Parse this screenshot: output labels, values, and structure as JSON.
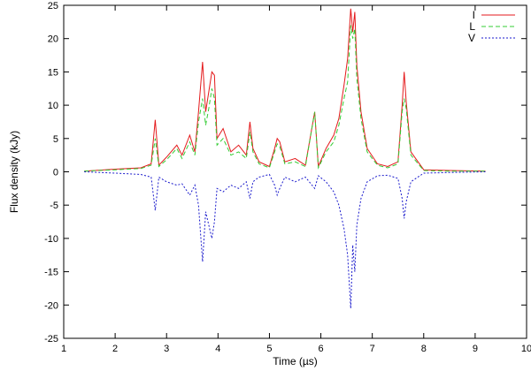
{
  "chart_data": {
    "type": "line",
    "title": "",
    "xlabel": "Time (µs)",
    "ylabel": "Flux density (kJy)",
    "xlim": [
      1,
      10
    ],
    "ylim": [
      -25,
      25
    ],
    "xticks": [
      1,
      2,
      3,
      4,
      5,
      6,
      7,
      8,
      9,
      10
    ],
    "yticks": [
      -25,
      -20,
      -15,
      -10,
      -5,
      0,
      5,
      10,
      15,
      20,
      25
    ],
    "grid": false,
    "legend_position": "top-right",
    "series": [
      {
        "name": "I",
        "color": "#e41a1c",
        "style": "solid",
        "x": [
          1.4,
          2.0,
          2.5,
          2.7,
          2.78,
          2.85,
          3.0,
          3.2,
          3.3,
          3.45,
          3.55,
          3.62,
          3.7,
          3.76,
          3.82,
          3.88,
          3.93,
          3.98,
          4.1,
          4.25,
          4.4,
          4.55,
          4.62,
          4.68,
          4.8,
          5.0,
          5.1,
          5.15,
          5.2,
          5.3,
          5.5,
          5.7,
          5.88,
          5.95,
          6.1,
          6.25,
          6.35,
          6.45,
          6.52,
          6.58,
          6.62,
          6.66,
          6.7,
          6.78,
          6.9,
          7.1,
          7.3,
          7.5,
          7.58,
          7.62,
          7.66,
          7.75,
          8.0,
          8.5,
          9.2
        ],
        "y": [
          0.1,
          0.4,
          0.6,
          1.2,
          7.8,
          1.0,
          2.2,
          4.0,
          2.5,
          5.5,
          3.0,
          9.0,
          16.5,
          9.0,
          12.0,
          15.0,
          14.5,
          5.0,
          6.5,
          3.0,
          4.0,
          2.5,
          7.5,
          3.5,
          1.5,
          0.8,
          3.5,
          5.0,
          4.5,
          1.5,
          2.0,
          1.0,
          9.0,
          0.8,
          3.5,
          5.5,
          8.0,
          13.0,
          17.0,
          24.5,
          21.0,
          24.0,
          16.0,
          9.0,
          3.5,
          1.2,
          0.8,
          1.5,
          10.0,
          15.0,
          10.5,
          3.0,
          0.3,
          0.2,
          0.1
        ]
      },
      {
        "name": "L",
        "color": "#33cc33",
        "style": "dashed",
        "x": [
          1.4,
          2.0,
          2.5,
          2.7,
          2.78,
          2.85,
          3.0,
          3.2,
          3.3,
          3.45,
          3.55,
          3.62,
          3.7,
          3.76,
          3.82,
          3.88,
          3.93,
          3.98,
          4.1,
          4.25,
          4.4,
          4.55,
          4.62,
          4.68,
          4.8,
          5.0,
          5.1,
          5.15,
          5.2,
          5.3,
          5.5,
          5.7,
          5.88,
          5.95,
          6.1,
          6.25,
          6.35,
          6.45,
          6.52,
          6.58,
          6.62,
          6.66,
          6.7,
          6.78,
          6.9,
          7.1,
          7.3,
          7.5,
          7.58,
          7.62,
          7.66,
          7.75,
          8.0,
          8.5,
          9.2
        ],
        "y": [
          0.1,
          0.3,
          0.5,
          1.0,
          5.0,
          0.8,
          1.8,
          3.5,
          2.0,
          4.5,
          2.5,
          7.5,
          11.0,
          7.0,
          9.5,
          12.5,
          11.0,
          4.0,
          5.0,
          2.5,
          3.0,
          2.0,
          6.0,
          3.0,
          1.2,
          0.6,
          3.0,
          4.2,
          3.8,
          1.2,
          1.5,
          0.8,
          9.0,
          0.6,
          3.0,
          4.5,
          7.0,
          11.0,
          13.5,
          22.0,
          20.0,
          21.5,
          14.0,
          8.0,
          3.0,
          1.0,
          0.6,
          1.2,
          9.0,
          11.0,
          9.5,
          2.5,
          0.2,
          0.1,
          0.1
        ]
      },
      {
        "name": "V",
        "color": "#1a1acc",
        "style": "dotted",
        "x": [
          1.4,
          2.0,
          2.5,
          2.7,
          2.78,
          2.85,
          3.0,
          3.2,
          3.3,
          3.45,
          3.55,
          3.62,
          3.7,
          3.76,
          3.82,
          3.88,
          3.93,
          3.98,
          4.1,
          4.25,
          4.4,
          4.55,
          4.62,
          4.68,
          4.8,
          5.0,
          5.1,
          5.15,
          5.2,
          5.3,
          5.5,
          5.7,
          5.88,
          5.95,
          6.1,
          6.25,
          6.35,
          6.45,
          6.52,
          6.58,
          6.62,
          6.66,
          6.7,
          6.78,
          6.9,
          7.1,
          7.3,
          7.5,
          7.58,
          7.62,
          7.66,
          7.75,
          8.0,
          8.5,
          9.2
        ],
        "y": [
          0.0,
          -0.2,
          -0.4,
          -0.8,
          -5.8,
          -0.8,
          -1.5,
          -2.0,
          -1.8,
          -3.5,
          -2.0,
          -5.0,
          -13.5,
          -6.0,
          -8.0,
          -10.0,
          -7.5,
          -2.5,
          -3.0,
          -2.0,
          -2.5,
          -1.5,
          -4.0,
          -1.5,
          -0.8,
          -0.4,
          -2.0,
          -3.5,
          -2.5,
          -0.8,
          -1.5,
          -0.8,
          -2.5,
          -0.6,
          -1.5,
          -3.0,
          -5.0,
          -8.5,
          -12.5,
          -20.5,
          -11.0,
          -15.0,
          -8.0,
          -4.0,
          -1.5,
          -0.6,
          -0.5,
          -1.0,
          -4.0,
          -7.0,
          -4.5,
          -1.5,
          -0.2,
          -0.1,
          0.0
        ]
      }
    ]
  }
}
